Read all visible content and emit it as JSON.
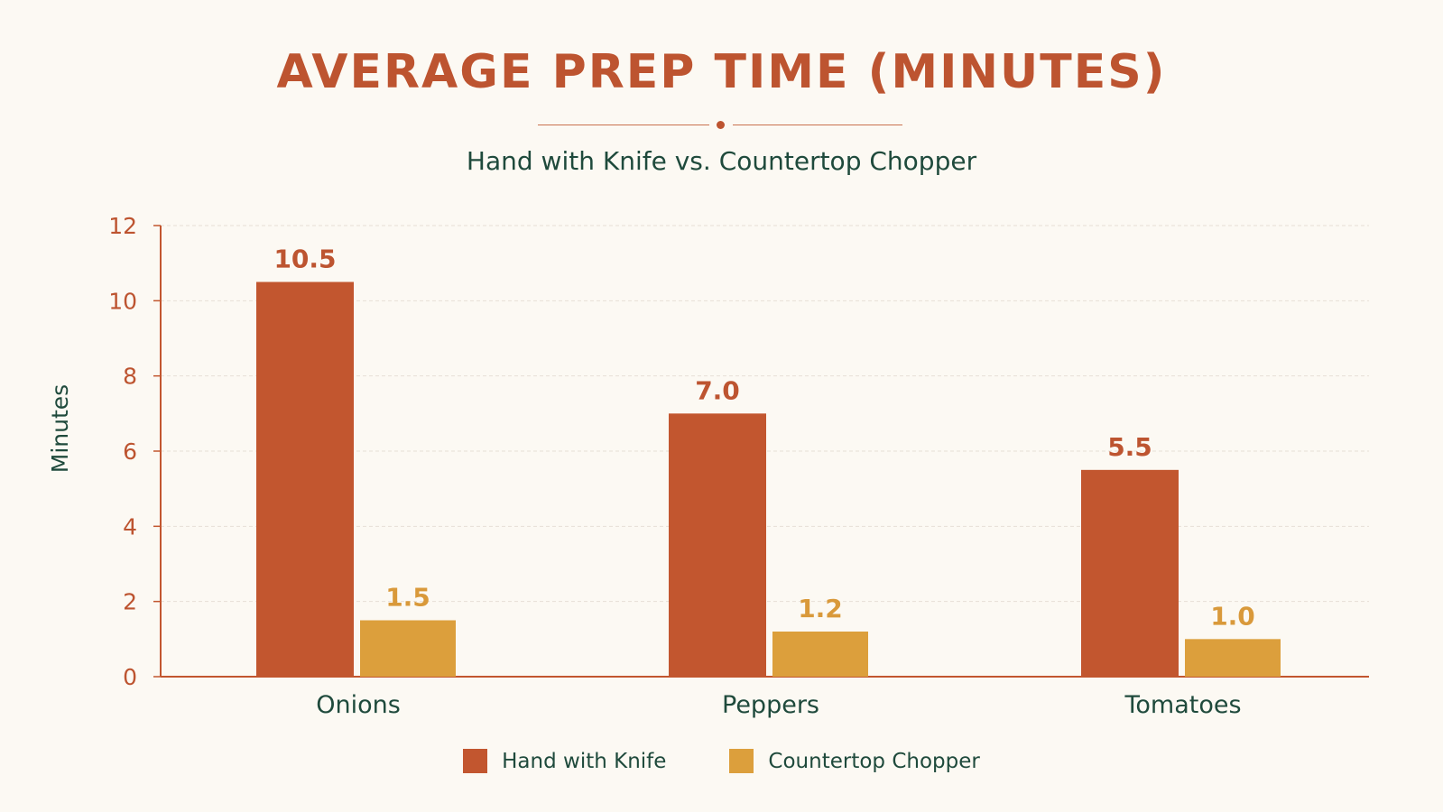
{
  "chart_data": {
    "type": "bar",
    "title": "AVERAGE PREP TIME (MINUTES)",
    "subtitle": "Hand with Knife vs. Countertop Chopper",
    "xlabel": "",
    "ylabel": "Minutes",
    "ylim": [
      0,
      12
    ],
    "yticks": [
      0,
      2,
      4,
      6,
      8,
      10,
      12
    ],
    "grid": true,
    "legend_position": "bottom",
    "categories": [
      "Onions",
      "Peppers",
      "Tomatoes"
    ],
    "series": [
      {
        "name": "Hand with Knife",
        "values": [
          10.5,
          7.0,
          5.5
        ],
        "labels": [
          "10.5",
          "7.0",
          "5.5"
        ],
        "color": "#c2562f"
      },
      {
        "name": "Countertop Chopper",
        "values": [
          1.5,
          1.2,
          1.0
        ],
        "labels": [
          "1.5",
          "1.2",
          "1.0"
        ],
        "color": "#dc9f3c"
      }
    ]
  },
  "colors": {
    "background": "#fcf9f3",
    "title": "#bd5430",
    "text_dark": "#1f4a3c",
    "axis_line": "#c2562f",
    "tick_label": "#bd5430",
    "grid": "#e6dfd6"
  }
}
